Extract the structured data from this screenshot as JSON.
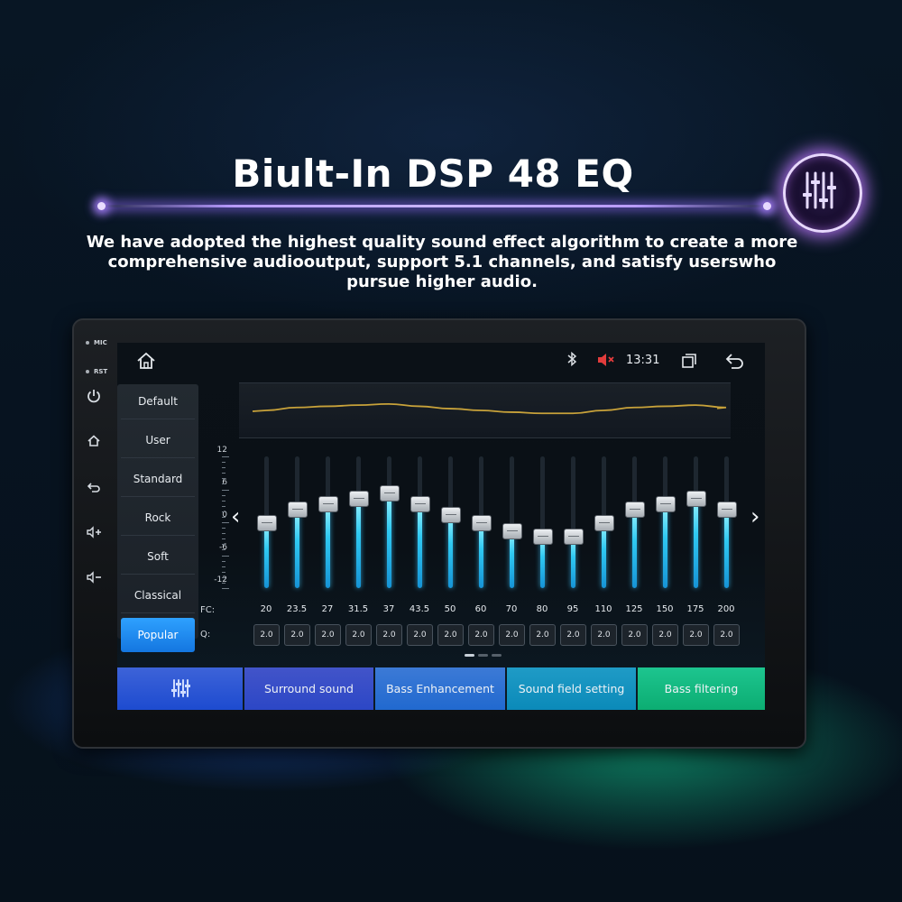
{
  "headline": "Biult-In DSP 48 EQ",
  "subtitle_lines": [
    "We have adopted the highest quality sound effect algorithm to create a more",
    "comprehensive audiooutput, support 5.1 channels, and satisfy userswho",
    "pursue higher audio."
  ],
  "device": {
    "labels": {
      "mic": "MIC",
      "rst": "RST"
    },
    "side_buttons": [
      "power-icon",
      "home-icon",
      "back-icon",
      "volume-up-icon",
      "volume-down-icon"
    ]
  },
  "status": {
    "time": "13:31",
    "icons": [
      "home-icon",
      "bluetooth-icon",
      "mute-icon",
      "recent-apps-icon",
      "back-icon"
    ]
  },
  "presets": {
    "items": [
      "Default",
      "User",
      "Standard",
      "Rock",
      "Soft",
      "Classical",
      "Popular"
    ],
    "active": "Popular"
  },
  "eq": {
    "scale": [
      "12",
      "6",
      "0",
      "-6",
      "-12"
    ],
    "fc_label": "FC:",
    "q_label": "Q:",
    "min": -12,
    "max": 12,
    "bands": [
      {
        "fc": "20",
        "q": "2.0",
        "gain": 0
      },
      {
        "fc": "23.5",
        "q": "2.0",
        "gain": 2.5
      },
      {
        "fc": "27",
        "q": "2.0",
        "gain": 3.5
      },
      {
        "fc": "31.5",
        "q": "2.0",
        "gain": 4.5
      },
      {
        "fc": "37",
        "q": "2.0",
        "gain": 5.5
      },
      {
        "fc": "43.5",
        "q": "2.0",
        "gain": 3.5
      },
      {
        "fc": "50",
        "q": "2.0",
        "gain": 1.5
      },
      {
        "fc": "60",
        "q": "2.0",
        "gain": 0
      },
      {
        "fc": "70",
        "q": "2.0",
        "gain": -1.5
      },
      {
        "fc": "80",
        "q": "2.0",
        "gain": -2.5
      },
      {
        "fc": "95",
        "q": "2.0",
        "gain": -2.5
      },
      {
        "fc": "110",
        "q": "2.0",
        "gain": 0
      },
      {
        "fc": "125",
        "q": "2.0",
        "gain": 2.5
      },
      {
        "fc": "150",
        "q": "2.0",
        "gain": 3.5
      },
      {
        "fc": "175",
        "q": "2.0",
        "gain": 4.5
      },
      {
        "fc": "200",
        "q": "2.0",
        "gain": 2.5
      }
    ],
    "page_count": 3,
    "current_page": 0
  },
  "tabs": {
    "eq_icon": "equalizer-icon",
    "items": [
      "Surround sound",
      "Bass Enhancement",
      "Sound field setting",
      "Bass filtering"
    ]
  },
  "colors": {
    "accent_blue": "#1e8cf0",
    "slider_cyan": "#2fc9f2",
    "curve_gold": "#c8a23a",
    "glow_purple": "#b89bff"
  }
}
